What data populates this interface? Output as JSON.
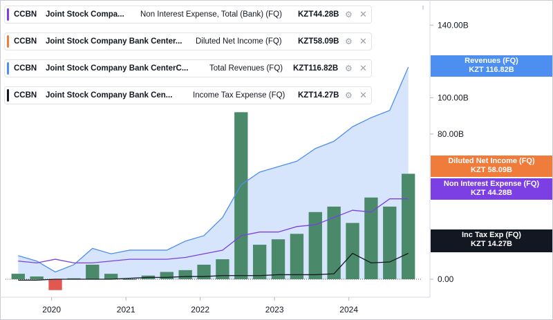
{
  "colors": {
    "revenue": "#4c8ff0",
    "revenue_fill": "#cfe0fc",
    "net_income": "#f07c3c",
    "expense": "#7b3fe4",
    "tax": "#131722",
    "bar": "#4a8a6a",
    "bar_negative": "#e05850",
    "axis_text": "#131722"
  },
  "legend": [
    {
      "symbol": "CCBN",
      "company": "Joint Stock Compa...",
      "metric": "Non Interest Expense, Total (Bank) (FQ)",
      "value": "KZT44.28B",
      "swatch": "#7b3fe4",
      "settings_icon": "gear-icon",
      "close_icon": "close-icon"
    },
    {
      "symbol": "CCBN",
      "company": "Joint Stock Company Bank Center...",
      "metric": "Diluted Net Income (FQ)",
      "value": "KZT58.09B",
      "swatch": "#f07c3c",
      "settings_icon": "gear-icon",
      "close_icon": "close-icon"
    },
    {
      "symbol": "CCBN",
      "company": "Joint Stock Company Bank CenterC...",
      "metric": "Total Revenues (FQ)",
      "value": "KZT116.82B",
      "swatch": "#4c8ff0",
      "settings_icon": "gear-icon",
      "close_icon": "close-icon"
    },
    {
      "symbol": "CCBN",
      "company": "Joint Stock Company Bank Cen...",
      "metric": "Income Tax Expense (FQ)",
      "value": "KZT14.27B",
      "swatch": "#131722",
      "settings_icon": "gear-icon",
      "close_icon": "close-icon"
    }
  ],
  "badges": [
    {
      "line1": "Revenues (FQ)",
      "line2": "KZT 116.82B",
      "color": "#4c8ff0",
      "value": 116.82
    },
    {
      "line1": "Diluted Net Income (FQ)",
      "line2": "KZT 58.09B",
      "color": "#f07c3c",
      "value": 58.09
    },
    {
      "line1": "Non Interest Expense (FQ)",
      "line2": "KZT 44.28B",
      "color": "#7b3fe4",
      "value": 44.28
    },
    {
      "line1": "Inc Tax Exp (FQ)",
      "line2": "KZT 14.27B",
      "color": "#131722",
      "value": 14.27
    }
  ],
  "chart_data": {
    "type": "bar",
    "x_ticks": [
      "2020",
      "2021",
      "2022",
      "2023",
      "2024"
    ],
    "x_tick_positions": [
      2020,
      2021,
      2022,
      2023,
      2024
    ],
    "y_ticks": [
      "140.00B",
      "100.00B",
      "80.00B",
      "0.00"
    ],
    "y_tick_values": [
      140,
      100,
      80,
      0
    ],
    "ylim": [
      -8,
      150
    ],
    "xlim": [
      2019.38,
      2024.98
    ],
    "x": [
      2019.55,
      2019.8,
      2020.05,
      2020.3,
      2020.55,
      2020.8,
      2021.05,
      2021.3,
      2021.55,
      2021.8,
      2022.05,
      2022.3,
      2022.55,
      2022.8,
      2023.05,
      2023.3,
      2023.55,
      2023.8,
      2024.05,
      2024.3,
      2024.55,
      2024.8
    ],
    "series": [
      {
        "name": "Total Revenues (FQ)",
        "kind": "area",
        "values": [
          13,
          10,
          4,
          8,
          17,
          14,
          16,
          16,
          16,
          21,
          24,
          34,
          52,
          59,
          62,
          65,
          72,
          76,
          84,
          89,
          93,
          116.82
        ]
      },
      {
        "name": "Non Interest Expense (FQ)",
        "kind": "line",
        "values": [
          10,
          9,
          11,
          9,
          9,
          10,
          11,
          11,
          11,
          12,
          14,
          16,
          24,
          26,
          26,
          29,
          30,
          34,
          38,
          37,
          44.28,
          44.28
        ]
      },
      {
        "name": "Income Tax Expense (FQ)",
        "kind": "line",
        "values": [
          -0.5,
          -0.5,
          0,
          0,
          0,
          0,
          0.5,
          1,
          1,
          1.5,
          1.5,
          2,
          2,
          2,
          2.5,
          2.5,
          2.5,
          3,
          14.27,
          9,
          9.5,
          14.27
        ]
      },
      {
        "name": "Diluted Net Income (FQ)",
        "kind": "bar",
        "values": [
          3,
          1.5,
          -6,
          0.5,
          8,
          3,
          0,
          2,
          4,
          5,
          8,
          11,
          92,
          19,
          22,
          25,
          37,
          40,
          31,
          45,
          40,
          58.09
        ]
      }
    ]
  }
}
